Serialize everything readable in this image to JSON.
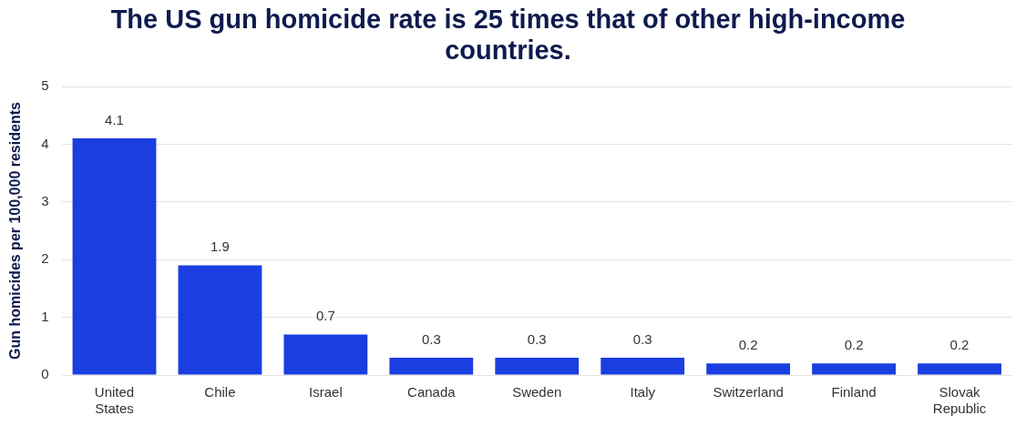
{
  "chart_data": {
    "type": "bar",
    "title": "The US gun homicide rate is 25 times that of other high-income countries.",
    "ylabel": "Gun homicides per 100,000 residents",
    "categories": [
      "United States",
      "Chile",
      "Israel",
      "Canada",
      "Sweden",
      "Italy",
      "Switzerland",
      "Finland",
      "Slovak Republic"
    ],
    "values": [
      4.1,
      1.9,
      0.7,
      0.3,
      0.3,
      0.3,
      0.2,
      0.2,
      0.2
    ],
    "color": "#1a3ee0",
    "ylim": [
      0,
      5
    ],
    "yticks": [
      0,
      1,
      2,
      3,
      4,
      5
    ],
    "grid": "y",
    "data_labels": true,
    "legend": false
  }
}
